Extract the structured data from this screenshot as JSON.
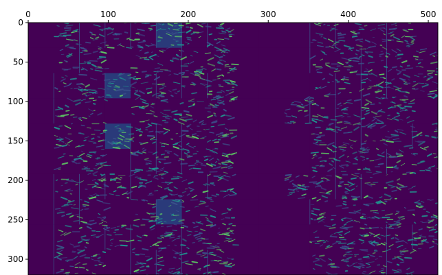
{
  "chart_data": {
    "type": "heatmap",
    "title": "",
    "xlabel": "",
    "ylabel": "",
    "colormap": "viridis",
    "x_axis_position": "top",
    "y_axis_inverted": true,
    "xlim": [
      0,
      512
    ],
    "ylim": [
      320,
      0
    ],
    "x_ticks": [
      0,
      100,
      200,
      300,
      400,
      500
    ],
    "y_ticks": [
      0,
      50,
      100,
      150,
      200,
      250,
      300
    ],
    "grid": false,
    "tile_columns": 16,
    "tile_rows": 10,
    "tile_size": 32,
    "background_value_color": "#440154",
    "colors": {
      "low": "#440154",
      "mid": "#3b528b",
      "teal": "#21908d",
      "high": "#5dc963",
      "max": "#fde725"
    }
  }
}
